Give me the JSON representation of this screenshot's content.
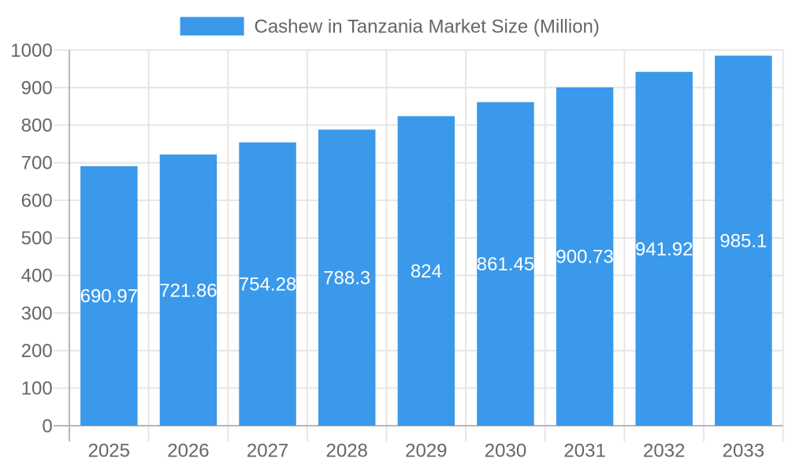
{
  "chart_data": {
    "type": "bar",
    "title": "Cashew in Tanzania Market Size (Million)",
    "categories": [
      "2025",
      "2026",
      "2027",
      "2028",
      "2029",
      "2030",
      "2031",
      "2032",
      "2033"
    ],
    "values": [
      690.97,
      721.86,
      754.28,
      788.3,
      824,
      861.45,
      900.73,
      941.92,
      985.1
    ],
    "value_labels": [
      "690.97",
      "721.86",
      "754.28",
      "788.3",
      "824",
      "861.45",
      "900.73",
      "941.92",
      "985.1"
    ],
    "xlabel": "",
    "ylabel": "",
    "ylim": [
      0,
      1000
    ],
    "ytick_step": 100,
    "yticks": [
      0,
      100,
      200,
      300,
      400,
      500,
      600,
      700,
      800,
      900,
      1000
    ],
    "grid": true,
    "legend": {
      "position": "top",
      "label": "Cashew in Tanzania Market Size (Million)"
    },
    "colors": {
      "bar": "#3a99ea",
      "value_label": "#ffffff",
      "grid_line": "#e6e6e6",
      "axis_line": "#b8b8b8",
      "tick_label": "#666666",
      "legend_label": "#666666",
      "background": "#ffffff"
    }
  }
}
